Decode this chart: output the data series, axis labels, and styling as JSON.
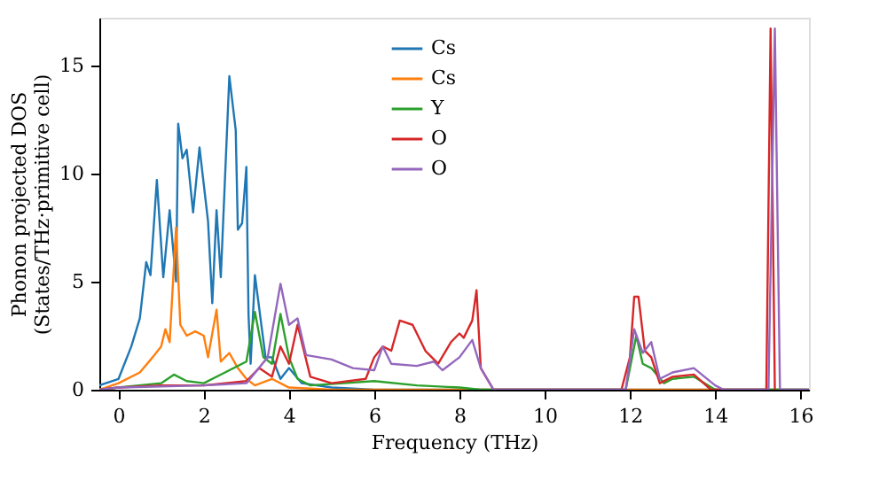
{
  "chart_data": {
    "type": "line",
    "xlabel": "Frequency (THz)",
    "ylabel": "Phonon projected DOS\n(States/THz·primitive cell)",
    "xlim": [
      -0.45,
      16.2
    ],
    "ylim": [
      0,
      17.2
    ],
    "xticks": [
      0,
      2,
      4,
      6,
      8,
      10,
      12,
      14,
      16
    ],
    "yticks": [
      0,
      5,
      10,
      15
    ],
    "grid": false,
    "legend": "top",
    "marker": "none",
    "line_style": "solid",
    "series": [
      {
        "name": "Cs",
        "color": "#1f77b4",
        "x": [
          -0.45,
          0,
          0.3,
          0.5,
          0.65,
          0.75,
          0.9,
          1.05,
          1.2,
          1.35,
          1.4,
          1.5,
          1.6,
          1.75,
          1.9,
          2.1,
          2.2,
          2.3,
          2.4,
          2.6,
          2.75,
          2.8,
          2.9,
          3.0,
          3.05,
          3.1,
          3.2,
          3.45,
          3.6,
          3.8,
          4.0,
          4.3,
          5.0,
          6.0,
          16.2
        ],
        "values": [
          0.2,
          0.5,
          2,
          3.3,
          5.9,
          5.3,
          9.7,
          5.2,
          8.3,
          5,
          12.3,
          10.7,
          11.1,
          8.2,
          11.2,
          7.8,
          4,
          8.3,
          5.2,
          14.5,
          12,
          7.4,
          7.7,
          10.3,
          3.5,
          1.2,
          5.3,
          1.5,
          1.5,
          0.5,
          1,
          0.3,
          0.1,
          0,
          0
        ]
      },
      {
        "name": "Cs",
        "color": "#ff7f0e",
        "x": [
          -0.45,
          0,
          0.5,
          0.8,
          1.0,
          1.1,
          1.2,
          1.35,
          1.45,
          1.6,
          1.8,
          2.0,
          2.1,
          2.3,
          2.4,
          2.6,
          2.8,
          3.0,
          3.2,
          3.6,
          4.0,
          5.0,
          16.2
        ],
        "values": [
          0,
          0.3,
          0.8,
          1.5,
          2,
          2.8,
          2.2,
          7.5,
          3,
          2.5,
          2.7,
          2.5,
          1.5,
          3.7,
          1.3,
          1.7,
          1,
          0.5,
          0.2,
          0.5,
          0.1,
          0,
          0
        ]
      },
      {
        "name": "Y",
        "color": "#2ca02c",
        "x": [
          -0.45,
          0,
          1,
          1.3,
          1.6,
          2,
          2.5,
          3.0,
          3.2,
          3.4,
          3.6,
          3.8,
          4.0,
          4.2,
          4.5,
          6,
          7,
          8,
          8.5,
          11.9,
          12.15,
          12.3,
          12.5,
          12.8,
          13,
          13.5,
          14,
          16.2
        ],
        "values": [
          0,
          0.1,
          0.3,
          0.7,
          0.4,
          0.3,
          0.8,
          1.3,
          3.6,
          1.5,
          1.2,
          3.5,
          1.5,
          0.5,
          0.2,
          0.4,
          0.2,
          0.1,
          0,
          0,
          2.5,
          1.2,
          1.0,
          0.3,
          0.5,
          0.6,
          0,
          0
        ]
      },
      {
        "name": "O",
        "color": "#d62728",
        "x": [
          -0.45,
          0,
          1,
          2,
          3,
          3.3,
          3.6,
          3.8,
          4.0,
          4.2,
          4.5,
          5.0,
          5.8,
          6.0,
          6.2,
          6.4,
          6.6,
          6.9,
          7.2,
          7.5,
          7.8,
          8.0,
          8.1,
          8.3,
          8.4,
          8.5,
          8.8,
          11.8,
          12.0,
          12.1,
          12.2,
          12.35,
          12.5,
          12.7,
          13,
          13.5,
          13.9,
          15.2,
          15.3,
          15.4
        ],
        "values": [
          0,
          0.1,
          0.2,
          0.2,
          0.4,
          1.0,
          0.6,
          2.0,
          1.2,
          3.0,
          0.6,
          0.3,
          0.5,
          1.5,
          2.0,
          1.8,
          3.2,
          3.0,
          1.8,
          1.2,
          2.2,
          2.6,
          2.4,
          3.2,
          4.6,
          1.0,
          0,
          0,
          1.5,
          4.3,
          4.3,
          1.8,
          1.5,
          0.3,
          0.6,
          0.7,
          0,
          0,
          16.7,
          0
        ]
      },
      {
        "name": "O",
        "color": "#9467bd",
        "x": [
          -0.45,
          0,
          2,
          3,
          3.5,
          3.8,
          4.0,
          4.2,
          4.4,
          5,
          5.5,
          6.0,
          6.2,
          6.4,
          7,
          7.4,
          7.6,
          8.0,
          8.3,
          8.5,
          8.8,
          11.9,
          12.1,
          12.3,
          12.5,
          12.7,
          13,
          13.5,
          14,
          14.2,
          15.25,
          15.4,
          15.52,
          16.2
        ],
        "values": [
          0,
          0.1,
          0.2,
          0.3,
          1.5,
          4.9,
          3.0,
          3.3,
          1.6,
          1.4,
          1.0,
          0.9,
          2.0,
          1.2,
          1.1,
          1.3,
          0.9,
          1.5,
          2.3,
          1.0,
          0,
          0,
          2.8,
          1.7,
          2.2,
          0.5,
          0.8,
          1.0,
          0.2,
          0,
          0,
          16.7,
          0,
          0
        ]
      }
    ]
  }
}
